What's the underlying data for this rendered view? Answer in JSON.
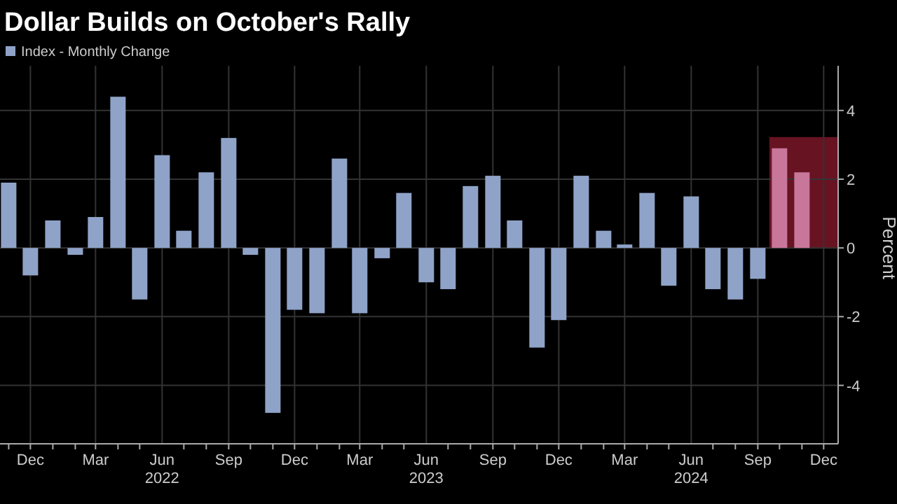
{
  "chart_data": {
    "type": "bar",
    "title": "Dollar Builds on October's Rally",
    "ylabel": "Percent",
    "x": [
      "2021-11",
      "2021-12",
      "2022-01",
      "2022-02",
      "2022-03",
      "2022-04",
      "2022-05",
      "2022-06",
      "2022-07",
      "2022-08",
      "2022-09",
      "2022-10",
      "2022-11",
      "2022-12",
      "2023-01",
      "2023-02",
      "2023-03",
      "2023-04",
      "2023-05",
      "2023-06",
      "2023-07",
      "2023-08",
      "2023-09",
      "2023-10",
      "2023-11",
      "2023-12",
      "2024-01",
      "2024-02",
      "2024-03",
      "2024-04",
      "2024-05",
      "2024-06",
      "2024-07",
      "2024-08",
      "2024-09",
      "2024-10",
      "2024-11"
    ],
    "series": [
      {
        "name": "Index - Monthly Change",
        "color": "#8fa3c8",
        "colors": [
          "#8fa3c8",
          "#8fa3c8",
          "#8fa3c8",
          "#8fa3c8",
          "#8fa3c8",
          "#8fa3c8",
          "#8fa3c8",
          "#8fa3c8",
          "#8fa3c8",
          "#8fa3c8",
          "#8fa3c8",
          "#8fa3c8",
          "#8fa3c8",
          "#8fa3c8",
          "#8fa3c8",
          "#8fa3c8",
          "#8fa3c8",
          "#8fa3c8",
          "#8fa3c8",
          "#8fa3c8",
          "#8fa3c8",
          "#8fa3c8",
          "#8fa3c8",
          "#8fa3c8",
          "#8fa3c8",
          "#8fa3c8",
          "#8fa3c8",
          "#8fa3c8",
          "#8fa3c8",
          "#8fa3c8",
          "#8fa3c8",
          "#8fa3c8",
          "#8fa3c8",
          "#8fa3c8",
          "#8fa3c8",
          "#c8769a",
          "#c8769a"
        ],
        "values": [
          1.9,
          -0.8,
          0.8,
          -0.2,
          0.9,
          4.4,
          -1.5,
          2.7,
          0.5,
          2.2,
          3.2,
          -0.2,
          -4.8,
          -1.8,
          -1.9,
          2.6,
          -1.9,
          -0.3,
          1.6,
          -1.0,
          -1.2,
          1.8,
          2.1,
          0.8,
          -2.9,
          -2.1,
          2.1,
          0.5,
          0.1,
          1.6,
          -1.1,
          1.5,
          -1.2,
          -1.5,
          -0.9,
          2.9,
          2.2
        ]
      }
    ],
    "xlim": [
      "2021-10-20",
      "2024-12-21"
    ],
    "xticks": [
      {
        "value": "2021-11",
        "label": null
      },
      {
        "value": "2021-12",
        "label": "Dec"
      },
      {
        "value": "2022-01",
        "label": null
      },
      {
        "value": "2022-02",
        "label": null
      },
      {
        "value": "2022-03",
        "label": "Mar"
      },
      {
        "value": "2022-04",
        "label": null
      },
      {
        "value": "2022-05",
        "label": null
      },
      {
        "value": "2022-06",
        "label": "Jun\n2022"
      },
      {
        "value": "2022-07",
        "label": null
      },
      {
        "value": "2022-08",
        "label": null
      },
      {
        "value": "2022-09",
        "label": "Sep"
      },
      {
        "value": "2022-10",
        "label": null
      },
      {
        "value": "2022-11",
        "label": null
      },
      {
        "value": "2022-12",
        "label": "Dec"
      },
      {
        "value": "2023-01",
        "label": null
      },
      {
        "value": "2023-02",
        "label": null
      },
      {
        "value": "2023-03",
        "label": "Mar"
      },
      {
        "value": "2023-04",
        "label": null
      },
      {
        "value": "2023-05",
        "label": null
      },
      {
        "value": "2023-06",
        "label": "Jun\n2023"
      },
      {
        "value": "2023-07",
        "label": null
      },
      {
        "value": "2023-08",
        "label": null
      },
      {
        "value": "2023-09",
        "label": "Sep"
      },
      {
        "value": "2023-10",
        "label": null
      },
      {
        "value": "2023-11",
        "label": null
      },
      {
        "value": "2023-12",
        "label": "Dec"
      },
      {
        "value": "2024-01",
        "label": null
      },
      {
        "value": "2024-02",
        "label": null
      },
      {
        "value": "2024-03",
        "label": "Mar"
      },
      {
        "value": "2024-04",
        "label": null
      },
      {
        "value": "2024-05",
        "label": null
      },
      {
        "value": "2024-06",
        "label": "Jun\n2024"
      },
      {
        "value": "2024-07",
        "label": null
      },
      {
        "value": "2024-08",
        "label": null
      },
      {
        "value": "2024-09",
        "label": "Sep"
      },
      {
        "value": "2024-10",
        "label": null
      },
      {
        "value": "2024-11",
        "label": null
      },
      {
        "value": "2024-12",
        "label": "Dec"
      }
    ],
    "ylim": [
      -5.7,
      5.3
    ],
    "yticks": [
      -4,
      -2,
      0,
      2,
      4
    ],
    "grid": true,
    "legend": "top left",
    "bands": [
      {
        "axis": "x",
        "from": "2024-09-17",
        "to": "2024-12-21",
        "color": "#7a1628"
      }
    ]
  }
}
